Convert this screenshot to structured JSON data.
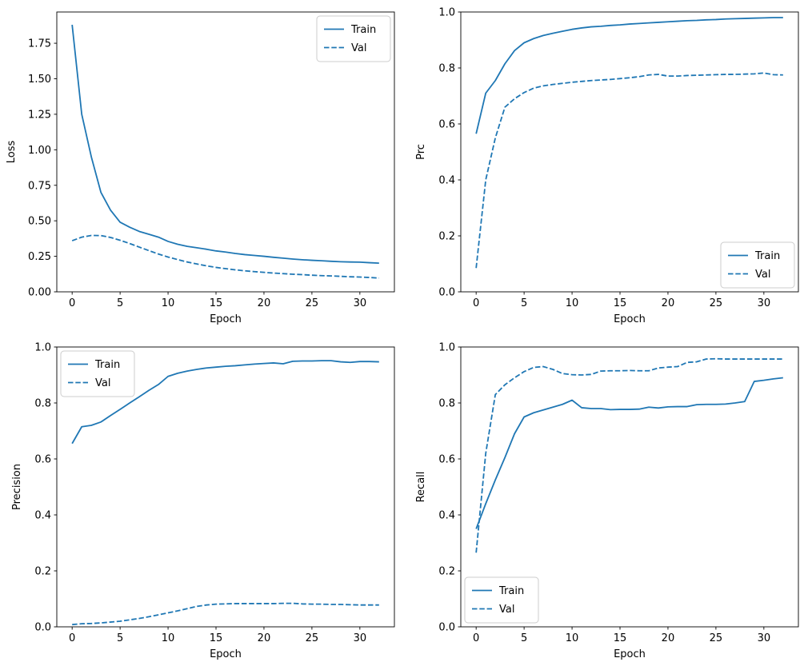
{
  "figure": {
    "background": "#ffffff",
    "accent_color": "#1f77b4",
    "text_color": "#000000",
    "spine_color": "#000000",
    "legend_border_color": "#cccccc",
    "legend_labels": {
      "train": "Train",
      "val": "Val"
    }
  },
  "chart_data": [
    {
      "type": "line",
      "name": "loss",
      "title": "",
      "xlabel": "Epoch",
      "ylabel": "Loss",
      "xlim": [
        -1.6,
        33.6
      ],
      "ylim": [
        0,
        1.97
      ],
      "xtick_values": [
        0,
        5,
        10,
        15,
        20,
        25,
        30
      ],
      "xtick_labels": [
        "0",
        "5",
        "10",
        "15",
        "20",
        "25",
        "30"
      ],
      "ytick_values": [
        0,
        0.25,
        0.5,
        0.75,
        1.0,
        1.25,
        1.5,
        1.75
      ],
      "ytick_labels": [
        "0.00",
        "0.25",
        "0.50",
        "0.75",
        "1.00",
        "1.25",
        "1.50",
        "1.75"
      ],
      "grid": false,
      "legend_position": "upper right",
      "x": [
        0,
        1,
        2,
        3,
        4,
        5,
        6,
        7,
        8,
        9,
        10,
        11,
        12,
        13,
        14,
        15,
        16,
        17,
        18,
        19,
        20,
        21,
        22,
        23,
        24,
        25,
        26,
        27,
        28,
        29,
        30,
        31,
        32
      ],
      "series": [
        {
          "name": "Train",
          "style": "solid",
          "values": [
            1.88,
            1.25,
            0.95,
            0.7,
            0.575,
            0.49,
            0.455,
            0.425,
            0.405,
            0.385,
            0.355,
            0.335,
            0.32,
            0.31,
            0.3,
            0.288,
            0.28,
            0.27,
            0.262,
            0.256,
            0.25,
            0.243,
            0.237,
            0.231,
            0.226,
            0.222,
            0.219,
            0.215,
            0.212,
            0.21,
            0.209,
            0.205,
            0.202
          ]
        },
        {
          "name": "Val",
          "style": "dashed",
          "values": [
            0.36,
            0.385,
            0.397,
            0.396,
            0.383,
            0.363,
            0.34,
            0.315,
            0.29,
            0.266,
            0.245,
            0.227,
            0.21,
            0.196,
            0.183,
            0.172,
            0.163,
            0.155,
            0.148,
            0.142,
            0.137,
            0.132,
            0.128,
            0.124,
            0.121,
            0.117,
            0.114,
            0.112,
            0.109,
            0.106,
            0.104,
            0.101,
            0.097
          ]
        }
      ]
    },
    {
      "type": "line",
      "name": "prc",
      "title": "",
      "xlabel": "Epoch",
      "ylabel": "Prc",
      "xlim": [
        -1.6,
        33.6
      ],
      "ylim": [
        0,
        1.0
      ],
      "xtick_values": [
        0,
        5,
        10,
        15,
        20,
        25,
        30
      ],
      "xtick_labels": [
        "0",
        "5",
        "10",
        "15",
        "20",
        "25",
        "30"
      ],
      "ytick_values": [
        0,
        0.2,
        0.4,
        0.6,
        0.8,
        1.0
      ],
      "ytick_labels": [
        "0.0",
        "0.2",
        "0.4",
        "0.6",
        "0.8",
        "1.0"
      ],
      "grid": false,
      "legend_position": "lower right",
      "x": [
        0,
        1,
        2,
        3,
        4,
        5,
        6,
        7,
        8,
        9,
        10,
        11,
        12,
        13,
        14,
        15,
        16,
        17,
        18,
        19,
        20,
        21,
        22,
        23,
        24,
        25,
        26,
        27,
        28,
        29,
        30,
        31,
        32
      ],
      "series": [
        {
          "name": "Train",
          "style": "solid",
          "values": [
            0.565,
            0.71,
            0.755,
            0.815,
            0.862,
            0.89,
            0.905,
            0.916,
            0.924,
            0.931,
            0.938,
            0.943,
            0.947,
            0.949,
            0.952,
            0.954,
            0.957,
            0.959,
            0.961,
            0.963,
            0.965,
            0.967,
            0.969,
            0.97,
            0.972,
            0.973,
            0.975,
            0.976,
            0.977,
            0.978,
            0.979,
            0.98,
            0.98
          ]
        },
        {
          "name": "Val",
          "style": "dashed",
          "values": [
            0.085,
            0.4,
            0.55,
            0.66,
            0.69,
            0.712,
            0.728,
            0.736,
            0.741,
            0.745,
            0.749,
            0.752,
            0.755,
            0.757,
            0.759,
            0.762,
            0.765,
            0.769,
            0.775,
            0.777,
            0.771,
            0.771,
            0.773,
            0.774,
            0.775,
            0.776,
            0.777,
            0.777,
            0.778,
            0.779,
            0.782,
            0.776,
            0.775
          ]
        }
      ]
    },
    {
      "type": "line",
      "name": "precision",
      "title": "",
      "xlabel": "Epoch",
      "ylabel": "Precision",
      "xlim": [
        -1.6,
        33.6
      ],
      "ylim": [
        0,
        1.0
      ],
      "xtick_values": [
        0,
        5,
        10,
        15,
        20,
        25,
        30
      ],
      "xtick_labels": [
        "0",
        "5",
        "10",
        "15",
        "20",
        "25",
        "30"
      ],
      "ytick_values": [
        0,
        0.2,
        0.4,
        0.6,
        0.8,
        1.0
      ],
      "ytick_labels": [
        "0.0",
        "0.2",
        "0.4",
        "0.6",
        "0.8",
        "1.0"
      ],
      "grid": false,
      "legend_position": "upper left",
      "x": [
        0,
        1,
        2,
        3,
        4,
        5,
        6,
        7,
        8,
        9,
        10,
        11,
        12,
        13,
        14,
        15,
        16,
        17,
        18,
        19,
        20,
        21,
        22,
        23,
        24,
        25,
        26,
        27,
        28,
        29,
        30,
        31,
        32
      ],
      "series": [
        {
          "name": "Train",
          "style": "solid",
          "values": [
            0.655,
            0.715,
            0.72,
            0.732,
            0.755,
            0.777,
            0.8,
            0.822,
            0.845,
            0.866,
            0.895,
            0.906,
            0.914,
            0.92,
            0.925,
            0.928,
            0.931,
            0.933,
            0.936,
            0.939,
            0.941,
            0.943,
            0.94,
            0.949,
            0.95,
            0.95,
            0.951,
            0.951,
            0.947,
            0.945,
            0.948,
            0.948,
            0.947
          ]
        },
        {
          "name": "Val",
          "style": "dashed",
          "values": [
            0.008,
            0.011,
            0.012,
            0.014,
            0.017,
            0.02,
            0.025,
            0.03,
            0.036,
            0.043,
            0.05,
            0.057,
            0.065,
            0.073,
            0.078,
            0.081,
            0.082,
            0.083,
            0.083,
            0.083,
            0.083,
            0.083,
            0.084,
            0.084,
            0.082,
            0.081,
            0.081,
            0.08,
            0.08,
            0.079,
            0.078,
            0.078,
            0.078
          ]
        }
      ]
    },
    {
      "type": "line",
      "name": "recall",
      "title": "",
      "xlabel": "Epoch",
      "ylabel": "Recall",
      "xlim": [
        -1.6,
        33.6
      ],
      "ylim": [
        0,
        1.0
      ],
      "xtick_values": [
        0,
        5,
        10,
        15,
        20,
        25,
        30
      ],
      "xtick_labels": [
        "0",
        "5",
        "10",
        "15",
        "20",
        "25",
        "30"
      ],
      "ytick_values": [
        0,
        0.2,
        0.4,
        0.6,
        0.8,
        1.0
      ],
      "ytick_labels": [
        "0.0",
        "0.2",
        "0.4",
        "0.6",
        "0.8",
        "1.0"
      ],
      "grid": false,
      "legend_position": "lower left",
      "x": [
        0,
        1,
        2,
        3,
        4,
        5,
        6,
        7,
        8,
        9,
        10,
        11,
        12,
        13,
        14,
        15,
        16,
        17,
        18,
        19,
        20,
        21,
        22,
        23,
        24,
        25,
        26,
        27,
        28,
        29,
        30,
        31,
        32
      ],
      "series": [
        {
          "name": "Train",
          "style": "solid",
          "values": [
            0.35,
            0.44,
            0.525,
            0.605,
            0.69,
            0.75,
            0.765,
            0.775,
            0.785,
            0.795,
            0.81,
            0.783,
            0.78,
            0.78,
            0.776,
            0.777,
            0.777,
            0.778,
            0.785,
            0.782,
            0.786,
            0.787,
            0.787,
            0.794,
            0.795,
            0.795,
            0.796,
            0.8,
            0.805,
            0.877,
            0.881,
            0.886,
            0.89
          ]
        },
        {
          "name": "Val",
          "style": "dashed",
          "values": [
            0.265,
            0.62,
            0.83,
            0.865,
            0.89,
            0.912,
            0.927,
            0.93,
            0.92,
            0.905,
            0.901,
            0.9,
            0.902,
            0.914,
            0.915,
            0.915,
            0.916,
            0.915,
            0.915,
            0.925,
            0.928,
            0.93,
            0.945,
            0.947,
            0.957,
            0.958,
            0.957,
            0.957,
            0.957,
            0.957,
            0.957,
            0.957,
            0.957
          ]
        }
      ]
    }
  ]
}
